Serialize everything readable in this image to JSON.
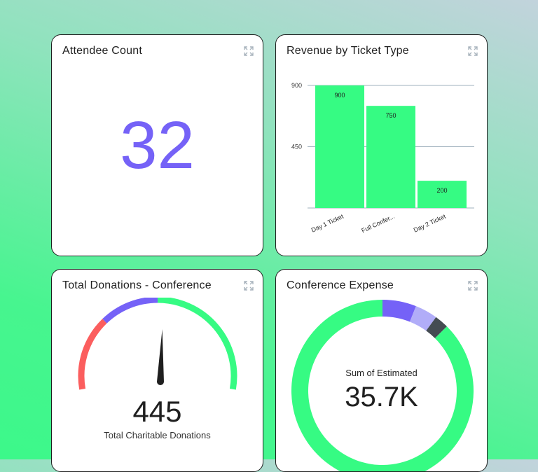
{
  "cards": {
    "attendees": {
      "title": "Attendee Count",
      "value": "32"
    },
    "revenue": {
      "title": "Revenue by Ticket Type"
    },
    "donations": {
      "title": "Total Donations - Conference",
      "value": "445",
      "caption": "Total Charitable Donations",
      "level_fraction": 0.51
    },
    "expense": {
      "title": "Conference Expense",
      "label": "Sum of Estimated",
      "value": "35.7K"
    }
  },
  "chart_data": [
    {
      "type": "bar",
      "title": "Revenue by Ticket Type",
      "categories": [
        "Day 1 Ticket",
        "Full Confer...",
        "Day 2 Ticket"
      ],
      "values": [
        900,
        750,
        200
      ],
      "value_labels": [
        "900",
        "750",
        "200"
      ],
      "yticks": [
        "900",
        "450"
      ],
      "ylim": [
        0,
        900
      ],
      "grid": true,
      "color": "#36fb83"
    },
    {
      "type": "pie",
      "title": "Conference Expense",
      "values": [
        0.06,
        0.04,
        0.025,
        0.875
      ],
      "colors": [
        "#7562f7",
        "#b1adf8",
        "#444c52",
        "#36fb83"
      ]
    }
  ],
  "colors": {
    "accent_purple": "#7562f7",
    "accent_green": "#36fb83",
    "gauge_red": "#fb5e5e",
    "needle": "#1f1f1f"
  },
  "icons": {
    "expand": "expand-icon"
  }
}
